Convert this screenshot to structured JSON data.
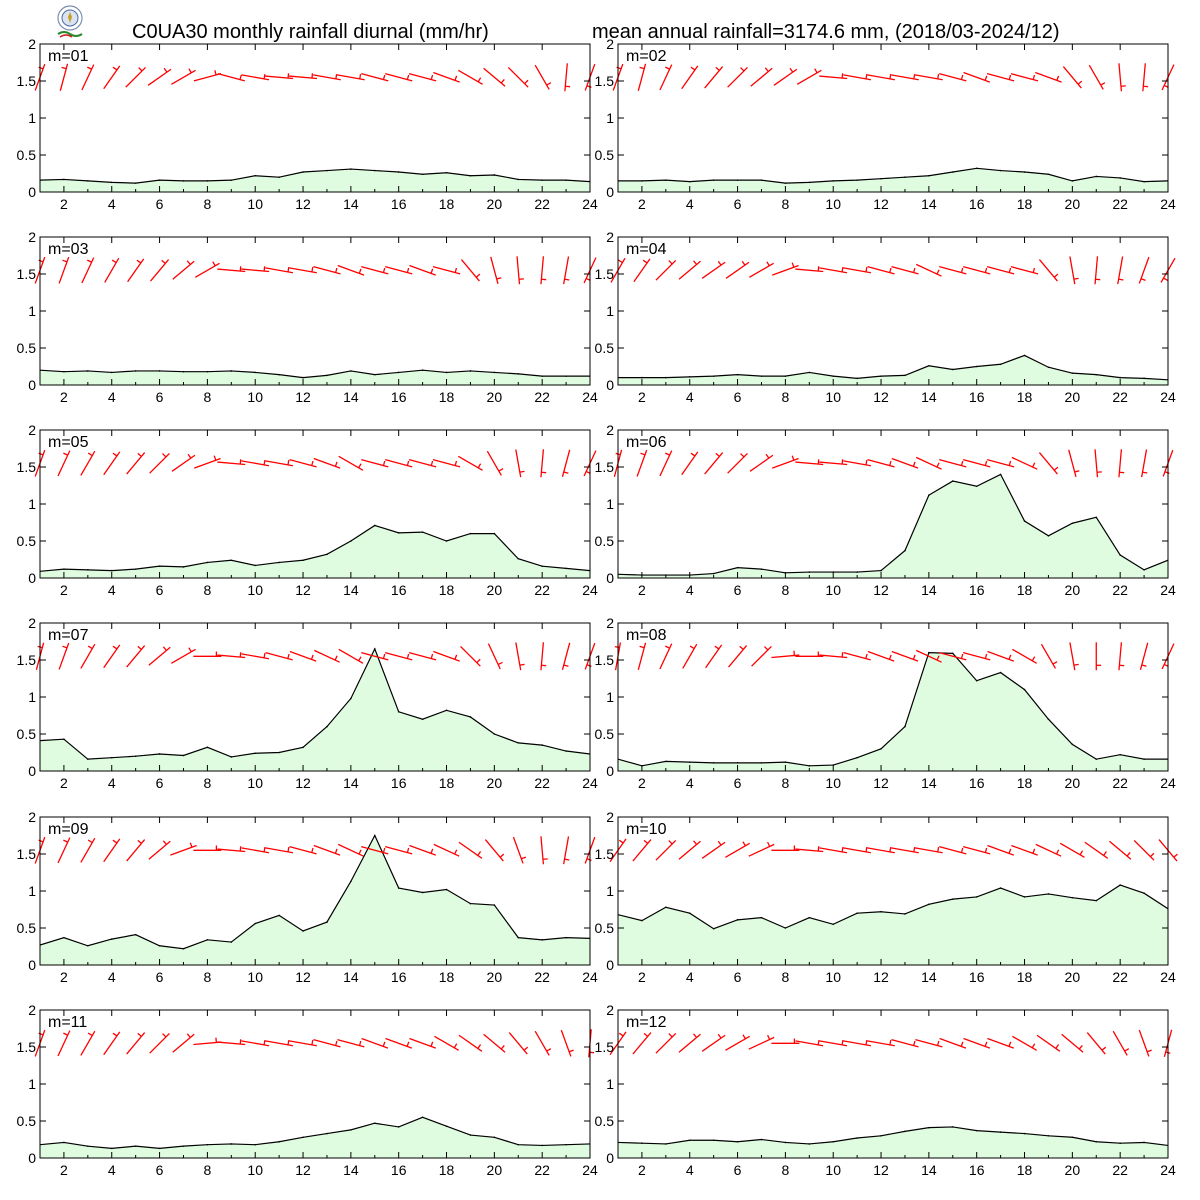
{
  "header": {
    "title_left": "C0UA30 monthly rainfall diurnal (mm/hr)",
    "title_right": "mean annual rainfall=3174.6 mm, (2018/03-2024/12)"
  },
  "chart_data": {
    "type": "area",
    "x": [
      1,
      2,
      3,
      4,
      5,
      6,
      7,
      8,
      9,
      10,
      11,
      12,
      13,
      14,
      15,
      16,
      17,
      18,
      19,
      20,
      21,
      22,
      23,
      24
    ],
    "x_tick_labels": [
      "2",
      "4",
      "6",
      "8",
      "10",
      "12",
      "14",
      "16",
      "18",
      "20",
      "22",
      "24"
    ],
    "y_tick_labels": [
      "0",
      "0.5",
      "1",
      "1.5",
      "2"
    ],
    "xlim": [
      1,
      24
    ],
    "ylim": [
      0,
      2
    ],
    "ylabel": "mm/hr",
    "grid": false,
    "colors": {
      "fill": "#e0fce0",
      "line": "#000000",
      "wind": "#ff0000"
    },
    "wind_barbs": "red wind barbs along y≈1.55 for each hour",
    "panels": [
      {
        "label": "m=01",
        "values": [
          0.16,
          0.17,
          0.15,
          0.13,
          0.12,
          0.16,
          0.15,
          0.15,
          0.16,
          0.22,
          0.2,
          0.27,
          0.29,
          0.31,
          0.29,
          0.27,
          0.24,
          0.26,
          0.22,
          0.23,
          0.17,
          0.16,
          0.16,
          0.14
        ],
        "wind_dir": [
          200,
          195,
          205,
          215,
          225,
          235,
          240,
          255,
          285,
          280,
          275,
          275,
          280,
          280,
          285,
          285,
          285,
          290,
          300,
          310,
          315,
          330,
          5,
          20
        ]
      },
      {
        "label": "m=02",
        "values": [
          0.15,
          0.15,
          0.16,
          0.14,
          0.16,
          0.16,
          0.16,
          0.12,
          0.13,
          0.15,
          0.16,
          0.18,
          0.2,
          0.22,
          0.27,
          0.32,
          0.29,
          0.27,
          0.24,
          0.15,
          0.21,
          0.19,
          0.14,
          0.15
        ],
        "wind_dir": [
          200,
          195,
          205,
          215,
          220,
          225,
          230,
          235,
          240,
          275,
          280,
          280,
          280,
          280,
          285,
          290,
          285,
          285,
          290,
          320,
          330,
          355,
          5,
          25
        ]
      },
      {
        "label": "m=03",
        "values": [
          0.2,
          0.18,
          0.19,
          0.17,
          0.19,
          0.19,
          0.18,
          0.18,
          0.19,
          0.17,
          0.14,
          0.1,
          0.13,
          0.19,
          0.14,
          0.17,
          0.2,
          0.17,
          0.19,
          0.17,
          0.15,
          0.12,
          0.12,
          0.12
        ],
        "wind_dir": [
          200,
          200,
          205,
          210,
          215,
          220,
          230,
          240,
          275,
          275,
          280,
          280,
          285,
          290,
          285,
          285,
          290,
          285,
          320,
          345,
          355,
          5,
          10,
          25
        ]
      },
      {
        "label": "m=04",
        "values": [
          0.1,
          0.1,
          0.1,
          0.11,
          0.12,
          0.14,
          0.12,
          0.12,
          0.17,
          0.12,
          0.09,
          0.12,
          0.13,
          0.26,
          0.21,
          0.25,
          0.28,
          0.4,
          0.24,
          0.16,
          0.14,
          0.1,
          0.09,
          0.07
        ],
        "wind_dir": [
          210,
          215,
          225,
          230,
          235,
          235,
          240,
          250,
          275,
          280,
          280,
          285,
          285,
          295,
          285,
          285,
          285,
          285,
          320,
          350,
          5,
          10,
          20,
          30
        ]
      },
      {
        "label": "m=05",
        "values": [
          0.09,
          0.12,
          0.11,
          0.1,
          0.12,
          0.16,
          0.15,
          0.21,
          0.24,
          0.17,
          0.21,
          0.24,
          0.32,
          0.5,
          0.71,
          0.61,
          0.62,
          0.5,
          0.6,
          0.6,
          0.26,
          0.16,
          0.13,
          0.1
        ],
        "wind_dir": [
          200,
          205,
          210,
          215,
          220,
          225,
          235,
          250,
          275,
          280,
          280,
          285,
          290,
          300,
          285,
          285,
          285,
          285,
          300,
          330,
          350,
          5,
          15,
          25
        ]
      },
      {
        "label": "m=06",
        "values": [
          0.05,
          0.04,
          0.04,
          0.04,
          0.06,
          0.14,
          0.12,
          0.07,
          0.08,
          0.08,
          0.08,
          0.1,
          0.37,
          1.12,
          1.31,
          1.24,
          1.4,
          0.77,
          0.57,
          0.74,
          0.82,
          0.31,
          0.11,
          0.24
        ],
        "wind_dir": [
          195,
          200,
          205,
          215,
          220,
          225,
          235,
          250,
          275,
          275,
          280,
          285,
          290,
          295,
          285,
          285,
          285,
          295,
          320,
          345,
          355,
          5,
          10,
          20
        ]
      },
      {
        "label": "m=07",
        "values": [
          0.41,
          0.43,
          0.16,
          0.18,
          0.2,
          0.23,
          0.21,
          0.32,
          0.19,
          0.24,
          0.25,
          0.32,
          0.6,
          0.98,
          1.65,
          0.8,
          0.7,
          0.82,
          0.73,
          0.5,
          0.38,
          0.35,
          0.27,
          0.23
        ],
        "wind_dir": [
          195,
          200,
          210,
          215,
          220,
          230,
          240,
          270,
          275,
          280,
          285,
          290,
          295,
          300,
          285,
          285,
          285,
          290,
          315,
          335,
          350,
          5,
          15,
          20
        ]
      },
      {
        "label": "m=08",
        "values": [
          0.16,
          0.07,
          0.13,
          0.12,
          0.11,
          0.11,
          0.11,
          0.12,
          0.07,
          0.08,
          0.18,
          0.3,
          0.6,
          1.6,
          1.59,
          1.22,
          1.33,
          1.1,
          0.7,
          0.36,
          0.16,
          0.22,
          0.16,
          0.16
        ],
        "wind_dir": [
          190,
          195,
          205,
          210,
          215,
          220,
          225,
          265,
          270,
          275,
          285,
          290,
          290,
          295,
          285,
          285,
          290,
          300,
          330,
          350,
          0,
          5,
          15,
          25
        ]
      },
      {
        "label": "m=09",
        "values": [
          0.27,
          0.37,
          0.26,
          0.35,
          0.41,
          0.26,
          0.22,
          0.34,
          0.31,
          0.56,
          0.67,
          0.46,
          0.58,
          1.13,
          1.75,
          1.04,
          0.98,
          1.02,
          0.83,
          0.81,
          0.37,
          0.34,
          0.37,
          0.36
        ],
        "wind_dir": [
          200,
          205,
          210,
          215,
          220,
          230,
          250,
          270,
          275,
          280,
          280,
          285,
          290,
          295,
          285,
          285,
          290,
          295,
          305,
          320,
          340,
          355,
          10,
          20
        ]
      },
      {
        "label": "m=10",
        "values": [
          0.68,
          0.6,
          0.78,
          0.7,
          0.49,
          0.61,
          0.64,
          0.5,
          0.64,
          0.55,
          0.7,
          0.72,
          0.69,
          0.82,
          0.89,
          0.92,
          1.04,
          0.92,
          0.96,
          0.91,
          0.87,
          1.08,
          0.97,
          0.76
        ],
        "wind_dir": [
          215,
          220,
          225,
          230,
          235,
          240,
          245,
          270,
          275,
          280,
          280,
          280,
          280,
          280,
          285,
          285,
          290,
          290,
          295,
          300,
          305,
          310,
          315,
          320
        ]
      },
      {
        "label": "m=11",
        "values": [
          0.18,
          0.21,
          0.16,
          0.13,
          0.16,
          0.13,
          0.16,
          0.18,
          0.19,
          0.18,
          0.22,
          0.28,
          0.33,
          0.38,
          0.47,
          0.42,
          0.55,
          0.43,
          0.31,
          0.28,
          0.18,
          0.17,
          0.18,
          0.19
        ],
        "wind_dir": [
          200,
          205,
          210,
          215,
          220,
          225,
          230,
          265,
          275,
          280,
          280,
          280,
          285,
          285,
          290,
          290,
          290,
          300,
          305,
          310,
          320,
          330,
          340,
          5
        ]
      },
      {
        "label": "m=12",
        "values": [
          0.21,
          0.2,
          0.19,
          0.24,
          0.24,
          0.22,
          0.25,
          0.21,
          0.19,
          0.22,
          0.27,
          0.3,
          0.36,
          0.41,
          0.42,
          0.37,
          0.35,
          0.33,
          0.3,
          0.28,
          0.22,
          0.2,
          0.21,
          0.17
        ],
        "wind_dir": [
          215,
          220,
          225,
          230,
          235,
          240,
          245,
          270,
          280,
          280,
          280,
          280,
          285,
          285,
          290,
          290,
          290,
          300,
          305,
          310,
          320,
          330,
          340,
          15
        ]
      }
    ]
  }
}
